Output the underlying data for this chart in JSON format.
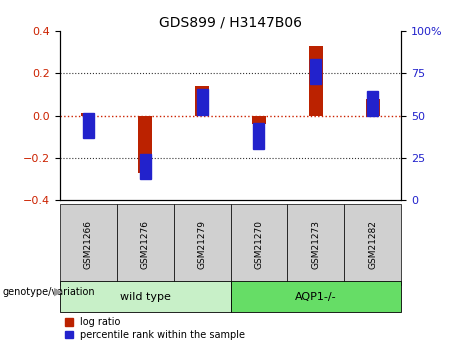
{
  "title": "GDS899 / H3147B06",
  "samples": [
    "GSM21266",
    "GSM21276",
    "GSM21279",
    "GSM21270",
    "GSM21273",
    "GSM21282"
  ],
  "log_ratios": [
    0.01,
    -0.27,
    0.14,
    -0.04,
    0.33,
    0.08
  ],
  "percentile_ranks": [
    44,
    20,
    58,
    38,
    76,
    57
  ],
  "ylim_left": [
    -0.4,
    0.4
  ],
  "ylim_right": [
    0,
    100
  ],
  "yticks_left": [
    -0.4,
    -0.2,
    0.0,
    0.2,
    0.4
  ],
  "yticks_right": [
    0,
    25,
    50,
    75,
    100
  ],
  "bar_color_red": "#bb2200",
  "bar_color_blue": "#2222cc",
  "dotted_line_color": "#333333",
  "zero_line_color": "#cc2200",
  "bg_color": "#ffffff",
  "tick_label_color_left": "#cc2200",
  "tick_label_color_right": "#2222cc",
  "bar_width": 0.25,
  "blue_sq_size": 0.12,
  "legend_red_label": "log ratio",
  "legend_blue_label": "percentile rank within the sample",
  "genotype_label": "genotype/variation",
  "group_label_1": "wild type",
  "group_label_2": "AQP1-/-",
  "wt_color": "#c8f0c8",
  "aqp_color": "#66dd66",
  "gray_box_color": "#d0d0d0",
  "title_fontsize": 10,
  "axis_fontsize": 8,
  "tick_fontsize": 7
}
